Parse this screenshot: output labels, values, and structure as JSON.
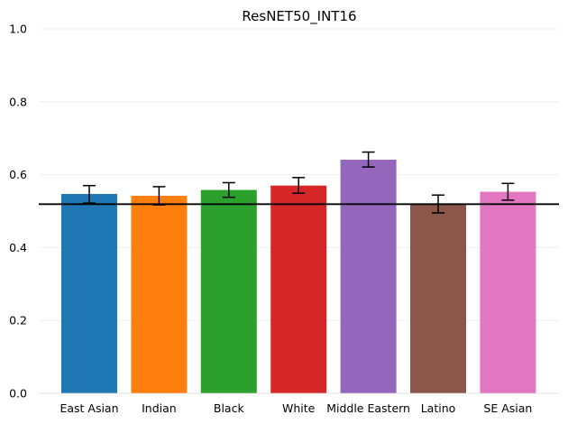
{
  "chart_data": {
    "type": "bar",
    "title": "ResNET50_INT16",
    "xlabel": "",
    "ylabel": "",
    "ylim": [
      0,
      1.0
    ],
    "yticks": [
      "0.0",
      "0.2",
      "0.4",
      "0.6",
      "0.8",
      "1.0"
    ],
    "grid": true,
    "categories": [
      "East Asian",
      "Indian",
      "Black",
      "White",
      "Middle Eastern",
      "Latino",
      "SE Asian"
    ],
    "values": [
      0.547,
      0.542,
      0.558,
      0.57,
      0.641,
      0.519,
      0.553
    ],
    "error_low": [
      0.522,
      0.517,
      0.538,
      0.549,
      0.621,
      0.495,
      0.53
    ],
    "error_high": [
      0.57,
      0.567,
      0.578,
      0.592,
      0.662,
      0.544,
      0.576
    ],
    "colors": [
      "#1f77b4",
      "#ff7f0e",
      "#2ca02c",
      "#d62728",
      "#9467bd",
      "#8c564b",
      "#e377c2"
    ],
    "reference_line": 0.519,
    "reference_color": "#000000"
  }
}
